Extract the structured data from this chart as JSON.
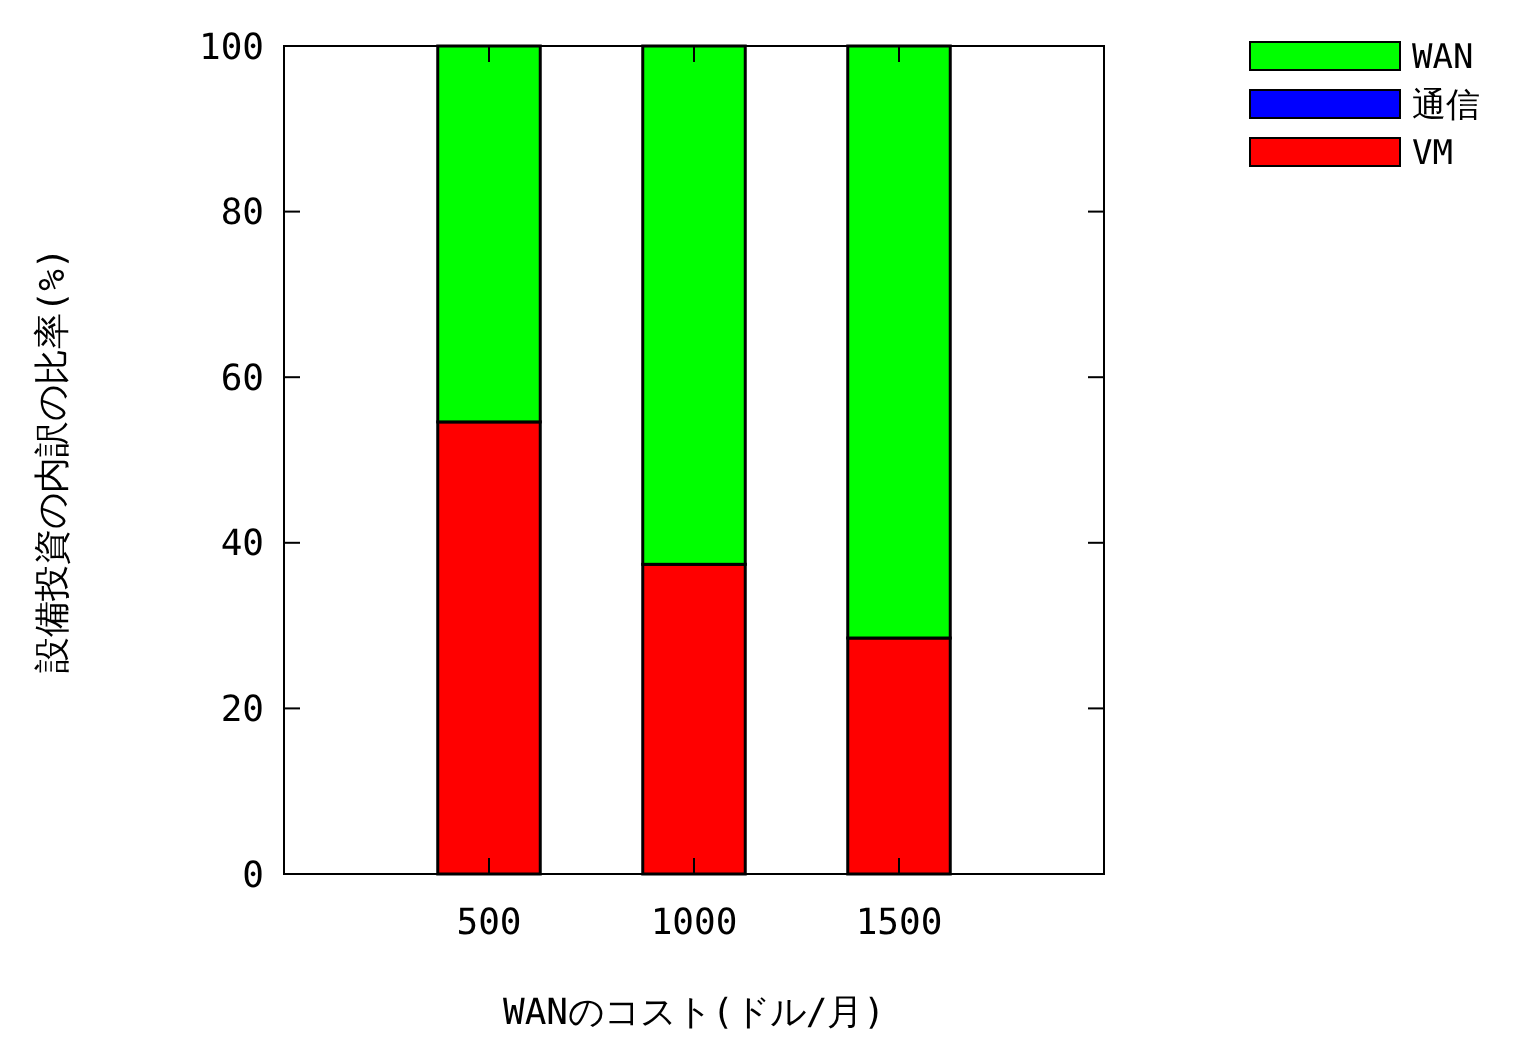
{
  "chart_data": {
    "type": "bar",
    "stacked": true,
    "xlabel": "WANのコスト(ドル/月)",
    "ylabel": "設備投資の内訳の比率(%)",
    "categories": [
      "500",
      "1000",
      "1500"
    ],
    "series": [
      {
        "name": "VM",
        "color": "#ff0000",
        "values": [
          54.6,
          37.4,
          28.5
        ]
      },
      {
        "name": "通信",
        "color": "#0000ff",
        "values": [
          0,
          0,
          0
        ]
      },
      {
        "name": "WAN",
        "color": "#00ff00",
        "values": [
          45.4,
          62.6,
          71.5
        ]
      }
    ],
    "ylim": [
      0,
      100
    ],
    "yticks": [
      0,
      20,
      40,
      60,
      80,
      100
    ],
    "grid": false,
    "legend": "top right"
  }
}
